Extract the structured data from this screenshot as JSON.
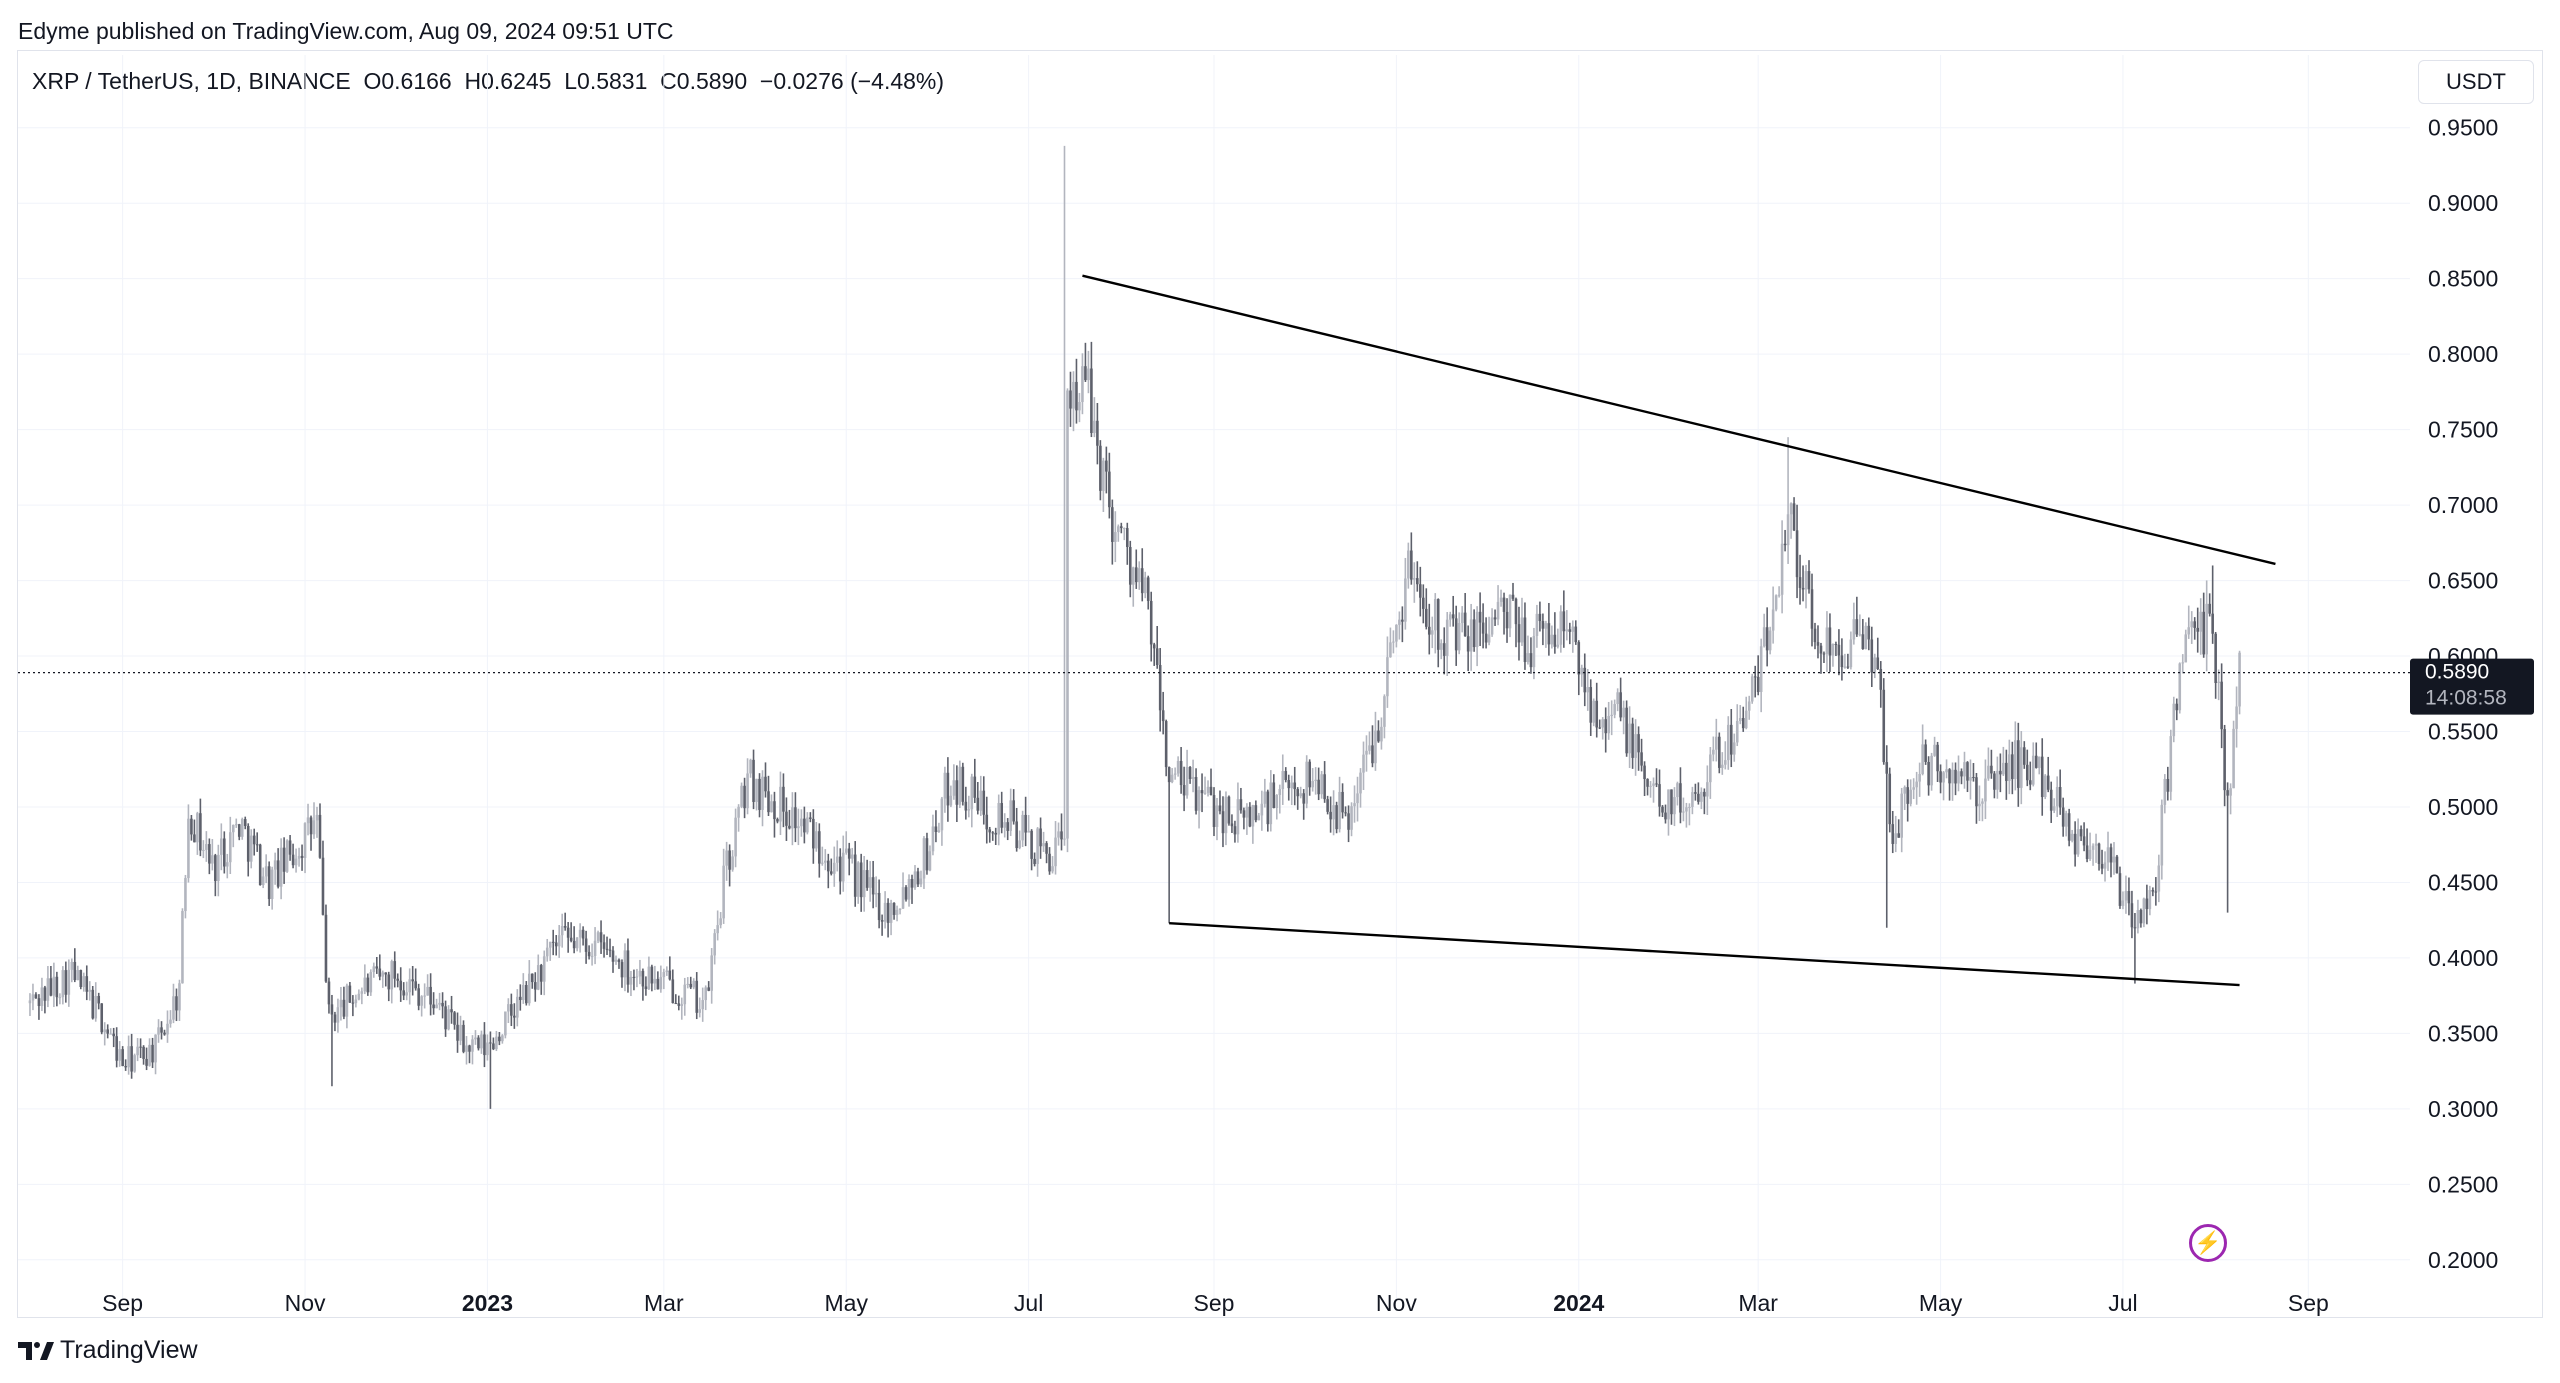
{
  "header": {
    "publisher": "Edyme published on TradingView.com, Aug 09, 2024 09:51 UTC"
  },
  "symbol": {
    "line": "XRP / TetherUS, 1D, BINANCE  O0.6166  H0.6245  L0.5831  C0.5890  −0.0276 (−4.48%)"
  },
  "currency_button": "USDT",
  "price_label": {
    "price": "0.5890",
    "countdown": "14:08:58"
  },
  "footer": {
    "brand": "TradingView"
  },
  "colors": {
    "candle": "#787b86",
    "trendline": "#000000",
    "accent": "#9c27b0",
    "label_bg": "#131722"
  },
  "chart_data": {
    "type": "bar",
    "series_name": "",
    "ylim": [
      0.18,
      0.975
    ],
    "y_ticks": [
      0.95,
      0.9,
      0.85,
      0.8,
      0.75,
      0.7,
      0.65,
      0.6,
      0.55,
      0.5,
      0.45,
      0.4,
      0.35,
      0.3,
      0.25,
      0.2
    ],
    "x_ticks": [
      {
        "label": "Sep",
        "date": "2022-09-01",
        "bold": false
      },
      {
        "label": "Nov",
        "date": "2022-11-01",
        "bold": false
      },
      {
        "label": "2023",
        "date": "2023-01-01",
        "bold": true
      },
      {
        "label": "Mar",
        "date": "2023-03-01",
        "bold": false
      },
      {
        "label": "May",
        "date": "2023-05-01",
        "bold": false
      },
      {
        "label": "Jul",
        "date": "2023-07-01",
        "bold": false
      },
      {
        "label": "Sep",
        "date": "2023-09-01",
        "bold": false
      },
      {
        "label": "Nov",
        "date": "2023-11-01",
        "bold": false
      },
      {
        "label": "2024",
        "date": "2024-01-01",
        "bold": true
      },
      {
        "label": "Mar",
        "date": "2024-03-01",
        "bold": false
      },
      {
        "label": "May",
        "date": "2024-05-01",
        "bold": false
      },
      {
        "label": "Jul",
        "date": "2024-07-01",
        "bold": false
      },
      {
        "label": "Sep",
        "date": "2024-09-01",
        "bold": false
      }
    ],
    "last_price": 0.589,
    "trendlines": [
      {
        "name": "upper-resistance",
        "start": {
          "date": "2023-07-19",
          "price": 0.852
        },
        "end": {
          "date": "2024-08-21",
          "price": 0.661
        }
      },
      {
        "name": "lower-support",
        "start": {
          "date": "2023-08-17",
          "price": 0.423
        },
        "end": {
          "date": "2024-08-09",
          "price": 0.382
        }
      }
    ],
    "price_path": [
      {
        "date": "2022-08-01",
        "price": 0.37
      },
      {
        "date": "2022-08-15",
        "price": 0.39
      },
      {
        "date": "2022-08-25",
        "price": 0.36
      },
      {
        "date": "2022-09-01",
        "price": 0.33
      },
      {
        "date": "2022-09-12",
        "price": 0.34
      },
      {
        "date": "2022-09-20",
        "price": 0.38
      },
      {
        "date": "2022-09-23",
        "price": 0.5
      },
      {
        "date": "2022-10-01",
        "price": 0.46
      },
      {
        "date": "2022-10-10",
        "price": 0.49
      },
      {
        "date": "2022-10-20",
        "price": 0.45
      },
      {
        "date": "2022-11-05",
        "price": 0.49
      },
      {
        "date": "2022-11-09",
        "price": 0.36
      },
      {
        "date": "2022-11-20",
        "price": 0.38
      },
      {
        "date": "2022-12-01",
        "price": 0.39
      },
      {
        "date": "2022-12-15",
        "price": 0.37
      },
      {
        "date": "2022-12-25",
        "price": 0.34
      },
      {
        "date": "2023-01-01",
        "price": 0.34
      },
      {
        "date": "2023-01-15",
        "price": 0.38
      },
      {
        "date": "2023-01-25",
        "price": 0.41
      },
      {
        "date": "2023-02-05",
        "price": 0.41
      },
      {
        "date": "2023-02-20",
        "price": 0.39
      },
      {
        "date": "2023-03-05",
        "price": 0.38
      },
      {
        "date": "2023-03-15",
        "price": 0.37
      },
      {
        "date": "2023-03-21",
        "price": 0.45
      },
      {
        "date": "2023-03-29",
        "price": 0.52
      },
      {
        "date": "2023-04-10",
        "price": 0.5
      },
      {
        "date": "2023-04-20",
        "price": 0.48
      },
      {
        "date": "2023-05-01",
        "price": 0.46
      },
      {
        "date": "2023-05-15",
        "price": 0.43
      },
      {
        "date": "2023-05-28",
        "price": 0.47
      },
      {
        "date": "2023-06-05",
        "price": 0.52
      },
      {
        "date": "2023-06-15",
        "price": 0.5
      },
      {
        "date": "2023-06-25",
        "price": 0.49
      },
      {
        "date": "2023-07-05",
        "price": 0.47
      },
      {
        "date": "2023-07-13",
        "price": 0.47
      },
      {
        "date": "2023-07-14",
        "price": 0.78
      },
      {
        "date": "2023-07-20",
        "price": 0.78
      },
      {
        "date": "2023-07-28",
        "price": 0.7
      },
      {
        "date": "2023-08-10",
        "price": 0.63
      },
      {
        "date": "2023-08-17",
        "price": 0.52
      },
      {
        "date": "2023-08-25",
        "price": 0.51
      },
      {
        "date": "2023-09-10",
        "price": 0.49
      },
      {
        "date": "2023-09-25",
        "price": 0.51
      },
      {
        "date": "2023-10-05",
        "price": 0.52
      },
      {
        "date": "2023-10-15",
        "price": 0.49
      },
      {
        "date": "2023-10-25",
        "price": 0.55
      },
      {
        "date": "2023-11-05",
        "price": 0.66
      },
      {
        "date": "2023-11-15",
        "price": 0.62
      },
      {
        "date": "2023-11-25",
        "price": 0.61
      },
      {
        "date": "2023-12-05",
        "price": 0.63
      },
      {
        "date": "2023-12-15",
        "price": 0.61
      },
      {
        "date": "2023-12-28",
        "price": 0.62
      },
      {
        "date": "2024-01-05",
        "price": 0.57
      },
      {
        "date": "2024-01-15",
        "price": 0.56
      },
      {
        "date": "2024-01-25",
        "price": 0.51
      },
      {
        "date": "2024-02-05",
        "price": 0.5
      },
      {
        "date": "2024-02-15",
        "price": 0.53
      },
      {
        "date": "2024-02-28",
        "price": 0.57
      },
      {
        "date": "2024-03-05",
        "price": 0.62
      },
      {
        "date": "2024-03-11",
        "price": 0.7
      },
      {
        "date": "2024-03-20",
        "price": 0.61
      },
      {
        "date": "2024-04-01",
        "price": 0.61
      },
      {
        "date": "2024-04-10",
        "price": 0.6
      },
      {
        "date": "2024-04-14",
        "price": 0.48
      },
      {
        "date": "2024-04-25",
        "price": 0.53
      },
      {
        "date": "2024-05-05",
        "price": 0.52
      },
      {
        "date": "2024-05-15",
        "price": 0.51
      },
      {
        "date": "2024-05-25",
        "price": 0.53
      },
      {
        "date": "2024-06-05",
        "price": 0.52
      },
      {
        "date": "2024-06-15",
        "price": 0.48
      },
      {
        "date": "2024-06-25",
        "price": 0.47
      },
      {
        "date": "2024-07-05",
        "price": 0.42
      },
      {
        "date": "2024-07-12",
        "price": 0.45
      },
      {
        "date": "2024-07-20",
        "price": 0.6
      },
      {
        "date": "2024-07-31",
        "price": 0.62
      },
      {
        "date": "2024-08-05",
        "price": 0.5
      },
      {
        "date": "2024-08-09",
        "price": 0.589
      }
    ],
    "wick_extremes": [
      {
        "date": "2023-07-13",
        "high": 0.938
      },
      {
        "date": "2023-08-17",
        "low": 0.423
      },
      {
        "date": "2024-03-11",
        "high": 0.745
      },
      {
        "date": "2024-04-13",
        "low": 0.42
      },
      {
        "date": "2024-07-05",
        "low": 0.383
      },
      {
        "date": "2024-07-31",
        "high": 0.66
      },
      {
        "date": "2024-08-05",
        "low": 0.43
      },
      {
        "date": "2022-11-10",
        "low": 0.315
      },
      {
        "date": "2023-01-02",
        "low": 0.3
      }
    ]
  }
}
